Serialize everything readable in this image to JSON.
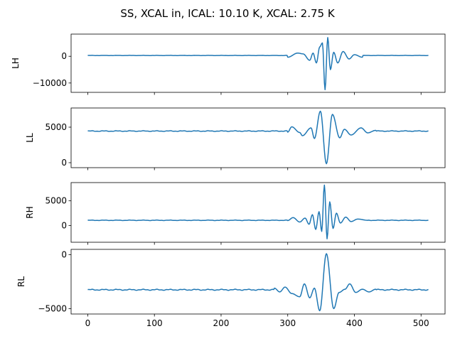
{
  "chart_data": {
    "type": "line",
    "title": "SS, XCAL in, ICAL: 10.10 K, XCAL: 2.75 K",
    "xlabel": "",
    "xlim": [
      -25,
      536
    ],
    "x_ticks": [
      0,
      100,
      200,
      300,
      400,
      500
    ],
    "x_tick_labels": [
      "0",
      "100",
      "200",
      "300",
      "400",
      "500"
    ],
    "n_points": 512,
    "color": "#1f77b4",
    "grid": false,
    "legend": "none",
    "panels": [
      {
        "name": "LH",
        "ylabel": "LH",
        "ylim": [
          -13500,
          8300
        ],
        "y_ticks": [
          0,
          -10000
        ],
        "y_tick_labels": [
          "0",
          "−10000"
        ],
        "baseline": 300,
        "features": [
          {
            "x": 300,
            "y": -350
          },
          {
            "x": 315,
            "y": 1200
          },
          {
            "x": 323,
            "y": 900
          },
          {
            "x": 333,
            "y": -1500
          },
          {
            "x": 338,
            "y": 1200
          },
          {
            "x": 343,
            "y": -2500
          },
          {
            "x": 348,
            "y": 3500
          },
          {
            "x": 352,
            "y": 5000
          },
          {
            "x": 356,
            "y": -12500
          },
          {
            "x": 360,
            "y": 7000
          },
          {
            "x": 364,
            "y": -5000
          },
          {
            "x": 369,
            "y": 1500
          },
          {
            "x": 375,
            "y": -2500
          },
          {
            "x": 383,
            "y": 1800
          },
          {
            "x": 392,
            "y": -1000
          },
          {
            "x": 400,
            "y": 600
          },
          {
            "x": 412,
            "y": -350
          }
        ]
      },
      {
        "name": "LL",
        "ylabel": "LL",
        "ylim": [
          -700,
          7700
        ],
        "y_ticks": [
          5000,
          0
        ],
        "y_tick_labels": [
          "5000",
          "0"
        ],
        "baseline": 4450,
        "features": [
          {
            "x": 300,
            "y": 4300
          },
          {
            "x": 306,
            "y": 5050
          },
          {
            "x": 318,
            "y": 4250
          },
          {
            "x": 322,
            "y": 3800
          },
          {
            "x": 335,
            "y": 4900
          },
          {
            "x": 340,
            "y": 3400
          },
          {
            "x": 349,
            "y": 7250
          },
          {
            "x": 358,
            "y": -150
          },
          {
            "x": 367,
            "y": 6800
          },
          {
            "x": 378,
            "y": 3500
          },
          {
            "x": 385,
            "y": 4700
          },
          {
            "x": 395,
            "y": 3900
          },
          {
            "x": 410,
            "y": 4900
          },
          {
            "x": 420,
            "y": 4200
          },
          {
            "x": 432,
            "y": 4550
          }
        ]
      },
      {
        "name": "RH",
        "ylabel": "RH",
        "ylim": [
          -3400,
          8700
        ],
        "y_ticks": [
          5000,
          0
        ],
        "y_tick_labels": [
          "5000",
          "0"
        ],
        "baseline": 1050,
        "features": [
          {
            "x": 300,
            "y": 1000
          },
          {
            "x": 308,
            "y": 1600
          },
          {
            "x": 318,
            "y": 700
          },
          {
            "x": 326,
            "y": 1500
          },
          {
            "x": 332,
            "y": 250
          },
          {
            "x": 337,
            "y": 2200
          },
          {
            "x": 342,
            "y": -800
          },
          {
            "x": 347,
            "y": 2800
          },
          {
            "x": 351,
            "y": -1200
          },
          {
            "x": 355,
            "y": 8200
          },
          {
            "x": 359,
            "y": -2700
          },
          {
            "x": 363,
            "y": 4800
          },
          {
            "x": 368,
            "y": -600
          },
          {
            "x": 373,
            "y": 2500
          },
          {
            "x": 379,
            "y": 500
          },
          {
            "x": 387,
            "y": 1700
          },
          {
            "x": 395,
            "y": 800
          },
          {
            "x": 405,
            "y": 1300
          },
          {
            "x": 420,
            "y": 1050
          }
        ]
      },
      {
        "name": "RL",
        "ylabel": "RL",
        "ylim": [
          -5500,
          500
        ],
        "y_ticks": [
          0,
          -5000
        ],
        "y_tick_labels": [
          "0",
          "−5000"
        ],
        "baseline": -3250,
        "features": [
          {
            "x": 280,
            "y": -3100
          },
          {
            "x": 288,
            "y": -3450
          },
          {
            "x": 296,
            "y": -3000
          },
          {
            "x": 306,
            "y": -3600
          },
          {
            "x": 318,
            "y": -3900
          },
          {
            "x": 325,
            "y": -2700
          },
          {
            "x": 333,
            "y": -4000
          },
          {
            "x": 340,
            "y": -3100
          },
          {
            "x": 348,
            "y": -5200
          },
          {
            "x": 358,
            "y": 100
          },
          {
            "x": 369,
            "y": -5000
          },
          {
            "x": 377,
            "y": -3500
          },
          {
            "x": 386,
            "y": -3200
          },
          {
            "x": 393,
            "y": -2700
          },
          {
            "x": 402,
            "y": -3500
          },
          {
            "x": 412,
            "y": -3200
          },
          {
            "x": 422,
            "y": -3450
          },
          {
            "x": 432,
            "y": -3200
          }
        ]
      }
    ]
  }
}
